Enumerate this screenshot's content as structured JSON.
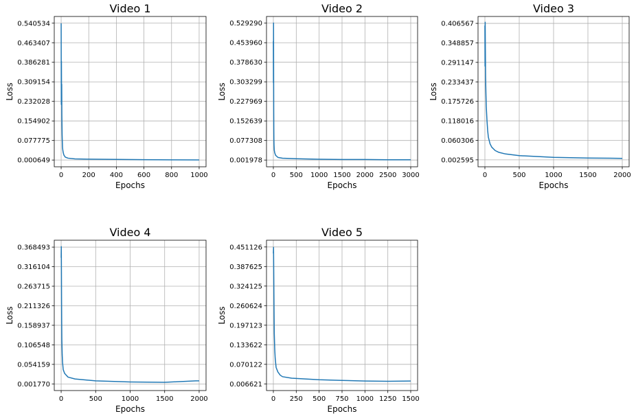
{
  "chart_data": [
    {
      "type": "line",
      "title": "Video 1",
      "xlabel": "Epochs",
      "ylabel": "Loss",
      "xlim": [
        -50,
        1050
      ],
      "ylim": [
        -0.026,
        0.567
      ],
      "xticks": [
        0,
        200,
        400,
        600,
        800,
        1000
      ],
      "yticks": [
        "0.000649",
        "0.077775",
        "0.154902",
        "0.232028",
        "0.309154",
        "0.386281",
        "0.463407",
        "0.540534"
      ],
      "grid": true,
      "line_color": "#1f77b4",
      "x": [
        0,
        1,
        2,
        3,
        4,
        5,
        6,
        7,
        8,
        10,
        12,
        15,
        20,
        30,
        50,
        100,
        200,
        400,
        600,
        800,
        1000
      ],
      "y": [
        0.54,
        0.22,
        0.39,
        0.23,
        0.3,
        0.18,
        0.14,
        0.1,
        0.08,
        0.05,
        0.04,
        0.03,
        0.02,
        0.012,
        0.008,
        0.005,
        0.004,
        0.003,
        0.002,
        0.0015,
        0.001
      ]
    },
    {
      "type": "line",
      "title": "Video 2",
      "xlabel": "Epochs",
      "ylabel": "Loss",
      "xlim": [
        -150,
        3150
      ],
      "ylim": [
        -0.024,
        0.555
      ],
      "xticks": [
        0,
        500,
        1000,
        1500,
        2000,
        2500,
        3000
      ],
      "yticks": [
        "0.001978",
        "0.077308",
        "0.152639",
        "0.227969",
        "0.303299",
        "0.378630",
        "0.453960",
        "0.529290"
      ],
      "grid": true,
      "line_color": "#1f77b4",
      "x": [
        0,
        2,
        4,
        6,
        8,
        10,
        12,
        15,
        20,
        30,
        50,
        100,
        200,
        500,
        1000,
        1500,
        2000,
        2500,
        3000
      ],
      "y": [
        0.46,
        0.3,
        0.53,
        0.35,
        0.2,
        0.12,
        0.08,
        0.06,
        0.04,
        0.03,
        0.02,
        0.012,
        0.009,
        0.007,
        0.005,
        0.004,
        0.004,
        0.003,
        0.003
      ]
    },
    {
      "type": "line",
      "title": "Video 3",
      "xlabel": "Epochs",
      "ylabel": "Loss",
      "xlim": [
        -100,
        2100
      ],
      "ylim": [
        -0.018,
        0.427
      ],
      "xticks": [
        0,
        500,
        1000,
        1500,
        2000
      ],
      "yticks": [
        "0.002595",
        "0.060306",
        "0.118016",
        "0.175726",
        "0.233437",
        "0.291147",
        "0.348857",
        "0.406567"
      ],
      "grid": true,
      "line_color": "#1f77b4",
      "x": [
        0,
        2,
        4,
        6,
        8,
        10,
        15,
        20,
        30,
        40,
        50,
        75,
        100,
        150,
        200,
        300,
        500,
        1000,
        1500,
        2000
      ],
      "y": [
        0.4,
        0.28,
        0.41,
        0.35,
        0.3,
        0.25,
        0.2,
        0.16,
        0.12,
        0.09,
        0.07,
        0.05,
        0.04,
        0.03,
        0.025,
        0.02,
        0.015,
        0.01,
        0.008,
        0.007
      ]
    },
    {
      "type": "line",
      "title": "Video 4",
      "xlabel": "Epochs",
      "ylabel": "Loss",
      "xlim": [
        -100,
        2100
      ],
      "ylim": [
        -0.016,
        0.387
      ],
      "xticks": [
        0,
        500,
        1000,
        1500,
        2000
      ],
      "yticks": [
        "0.001770",
        "0.054159",
        "0.106548",
        "0.158937",
        "0.211326",
        "0.263715",
        "0.316104",
        "0.368493"
      ],
      "grid": true,
      "line_color": "#1f77b4",
      "x": [
        0,
        2,
        4,
        6,
        8,
        10,
        15,
        20,
        30,
        50,
        75,
        100,
        200,
        500,
        1000,
        1500,
        1950,
        2000
      ],
      "y": [
        0.34,
        0.37,
        0.3,
        0.22,
        0.16,
        0.12,
        0.08,
        0.06,
        0.04,
        0.03,
        0.025,
        0.02,
        0.015,
        0.01,
        0.007,
        0.006,
        0.01,
        0.01
      ]
    },
    {
      "type": "line",
      "title": "Video 5",
      "xlabel": "Epochs",
      "ylabel": "Loss",
      "xlim": [
        -75,
        1575
      ],
      "ylim": [
        -0.015,
        0.473
      ],
      "xticks": [
        0,
        250,
        500,
        750,
        1000,
        1250,
        1500
      ],
      "yticks": [
        "0.006621",
        "0.070122",
        "0.133622",
        "0.197123",
        "0.260624",
        "0.324125",
        "0.387625",
        "0.451126"
      ],
      "grid": true,
      "line_color": "#1f77b4",
      "x": [
        0,
        2,
        4,
        6,
        8,
        10,
        15,
        20,
        30,
        50,
        75,
        100,
        200,
        500,
        750,
        1000,
        1250,
        1500
      ],
      "y": [
        0.43,
        0.45,
        0.38,
        0.3,
        0.23,
        0.17,
        0.12,
        0.09,
        0.06,
        0.045,
        0.035,
        0.03,
        0.025,
        0.02,
        0.018,
        0.016,
        0.015,
        0.016
      ]
    }
  ]
}
